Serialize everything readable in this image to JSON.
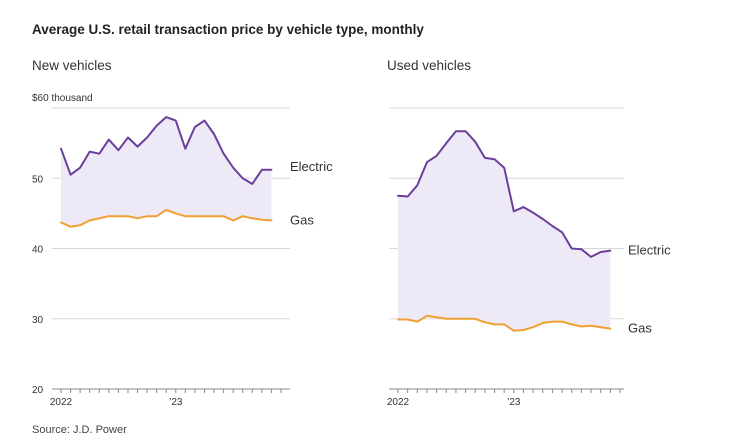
{
  "title": "Average U.S. retail transaction price by vehicle type, monthly",
  "source": "Source: J.D. Power",
  "colors": {
    "electric": "#6b3f99",
    "gas": "#f0a033",
    "fill": "#ede9f7",
    "grid": "#d8d8d8",
    "axis": "#888888"
  },
  "chart_data": [
    {
      "type": "line",
      "title": "New vehicles",
      "ylabel": "",
      "unit_label": "$60 thousand",
      "ylim": [
        20,
        60
      ],
      "yticks": [
        20,
        30,
        40,
        50,
        60
      ],
      "ytick_labels": [
        "20",
        "30",
        "40",
        "50",
        ""
      ],
      "xtick_labels": [
        {
          "index": 0,
          "label": "2022"
        },
        {
          "index": 12,
          "label": "’23"
        }
      ],
      "months": 24,
      "series": [
        {
          "name": "Electric",
          "label": "Electric",
          "values": [
            54.2,
            50.5,
            51.5,
            53.8,
            53.5,
            55.5,
            54.0,
            55.8,
            54.5,
            55.8,
            57.5,
            58.7,
            58.2,
            54.2,
            57.3,
            58.2,
            56.3,
            53.5,
            51.5,
            50.0,
            49.2,
            51.2,
            51.2
          ]
        },
        {
          "name": "Gas",
          "label": "Gas",
          "values": [
            43.7,
            43.1,
            43.3,
            44.0,
            44.3,
            44.6,
            44.6,
            44.6,
            44.3,
            44.6,
            44.6,
            45.5,
            45.0,
            44.6,
            44.6,
            44.6,
            44.6,
            44.6,
            44.0,
            44.6,
            44.3,
            44.1,
            44.0
          ]
        }
      ]
    },
    {
      "type": "line",
      "title": "Used vehicles",
      "ylabel": "",
      "ylim": [
        20,
        60
      ],
      "yticks": [
        20,
        30,
        40,
        50,
        60
      ],
      "xtick_labels": [
        {
          "index": 0,
          "label": "2022"
        },
        {
          "index": 12,
          "label": "’23"
        }
      ],
      "months": 24,
      "series": [
        {
          "name": "Electric",
          "label": "Electric",
          "values": [
            47.5,
            47.4,
            49.0,
            52.3,
            53.2,
            55.0,
            56.7,
            56.7,
            55.2,
            52.9,
            52.7,
            51.5,
            45.3,
            45.9,
            45.1,
            44.2,
            43.2,
            42.3,
            40.0,
            39.9,
            38.8,
            39.5,
            39.7
          ]
        },
        {
          "name": "Gas",
          "label": "Gas",
          "values": [
            29.9,
            29.9,
            29.6,
            30.4,
            30.2,
            30.0,
            30.0,
            30.0,
            30.0,
            29.5,
            29.2,
            29.2,
            28.3,
            28.4,
            28.8,
            29.4,
            29.6,
            29.6,
            29.2,
            28.9,
            29.0,
            28.8,
            28.6
          ]
        }
      ]
    }
  ]
}
